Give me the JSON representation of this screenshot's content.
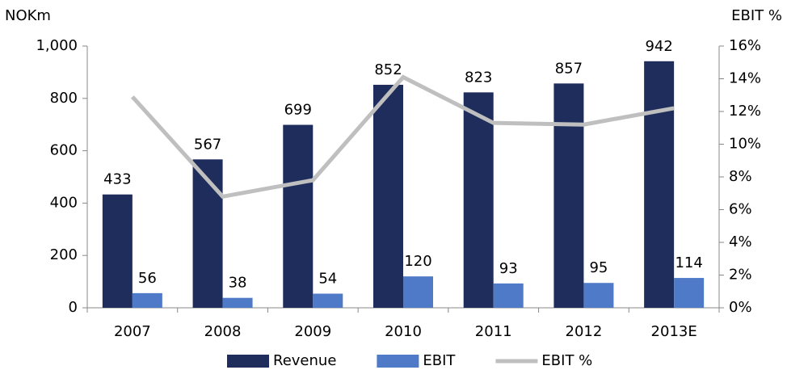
{
  "chart_data": {
    "type": "bar",
    "y_label": "NOKm",
    "y2_label": "EBIT %",
    "categories": [
      "2007",
      "2008",
      "2009",
      "2010",
      "2011",
      "2012",
      "2013E"
    ],
    "series": [
      {
        "name": "Revenue",
        "type": "bar",
        "color": "#1f2d5c",
        "values": [
          433,
          567,
          699,
          852,
          823,
          857,
          942
        ]
      },
      {
        "name": "EBIT",
        "type": "bar",
        "color": "#4f7ac7",
        "values": [
          56,
          38,
          54,
          120,
          93,
          95,
          114
        ]
      },
      {
        "name": "EBIT %",
        "type": "line",
        "axis": "y2",
        "color": "#bfbfbf",
        "values": [
          12.9,
          6.8,
          7.8,
          14.1,
          11.3,
          11.2,
          12.2
        ]
      }
    ],
    "ylim": [
      0,
      1000
    ],
    "yticks": [
      0,
      200,
      400,
      600,
      800,
      {
        "value": 1000,
        "label": "1,000"
      }
    ],
    "y2lim": [
      0,
      16
    ],
    "y2ticks": [
      {
        "value": 0,
        "label": "0%"
      },
      {
        "value": 2,
        "label": "2%"
      },
      {
        "value": 4,
        "label": "4%"
      },
      {
        "value": 6,
        "label": "6%"
      },
      {
        "value": 8,
        "label": "8%"
      },
      {
        "value": 10,
        "label": "10%"
      },
      {
        "value": 12,
        "label": "12%"
      },
      {
        "value": 14,
        "label": "14%"
      },
      {
        "value": 16,
        "label": "16%"
      }
    ],
    "legend": "bottom"
  }
}
